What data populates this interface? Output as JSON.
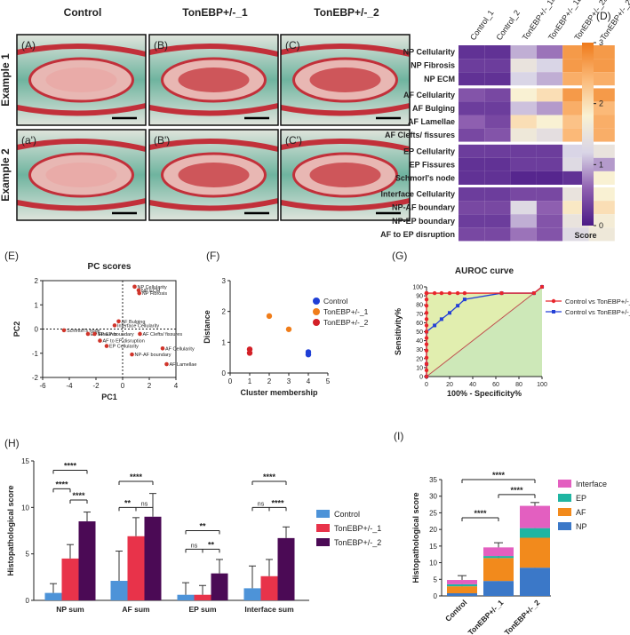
{
  "panel_letters": {
    "D": "(D)",
    "E": "(E)",
    "F": "(F)",
    "G": "(G)",
    "H": "(H)",
    "I": "(I)"
  },
  "histology": {
    "col_headers": [
      "Control",
      "TonEBP+/-_1",
      "TonEBP+/-_2"
    ],
    "row_headers": [
      "Example 1",
      "Example 2"
    ],
    "tile_labels": [
      [
        "(A)",
        "(B)",
        "(C)"
      ],
      [
        "(a')",
        "(B')",
        "(C')"
      ]
    ],
    "colors": {
      "bone": "#dfe4dc",
      "stain_green": "#6fb49f",
      "stain_red": "#c2303a",
      "tissue": "#e8b7b3",
      "border": "#111111"
    }
  },
  "chart_data": [
    {
      "panel": "D",
      "type": "heatmap",
      "columns": [
        "Control_1",
        "Control_2",
        "TonEBP+/-_1a",
        "TonEBP+/-_1b",
        "TonEBP+/-_2a",
        "TonEBP+/-_2b"
      ],
      "rows": [
        "NP Cellularity",
        "NP Fibrosis",
        "NP ECM",
        "AF Cellularity",
        "AF Bulging",
        "AF Lamellae",
        "AF Clefts/ fissures",
        "EP Cellularity",
        "EP Fissures",
        "Schmorl's node",
        "Interface Cellularity",
        "NP-AF boundary",
        "NP-EP boundary",
        "AF to EP disruption"
      ],
      "groups": [
        3,
        4,
        3,
        4
      ],
      "values": [
        [
          0.2,
          0.2,
          1.0,
          0.7,
          2.7,
          2.7
        ],
        [
          0.3,
          0.3,
          1.5,
          1.2,
          2.7,
          2.7
        ],
        [
          0.2,
          0.2,
          1.2,
          1.0,
          2.5,
          2.5
        ],
        [
          0.5,
          0.4,
          1.8,
          2.0,
          2.7,
          2.7
        ],
        [
          0.3,
          0.3,
          1.1,
          0.9,
          2.5,
          2.4
        ],
        [
          0.6,
          0.4,
          2.0,
          1.8,
          2.3,
          2.5
        ],
        [
          0.4,
          0.5,
          1.6,
          1.4,
          2.4,
          2.5
        ],
        [
          0.3,
          0.3,
          0.3,
          0.3,
          1.2,
          1.5
        ],
        [
          0.2,
          0.2,
          0.3,
          0.3,
          1.3,
          0.9
        ],
        [
          0.2,
          0.2,
          0.1,
          0.1,
          0.2,
          1.8
        ],
        [
          0.3,
          0.3,
          0.4,
          0.4,
          1.5,
          1.8
        ],
        [
          0.4,
          0.4,
          1.3,
          0.6,
          1.9,
          2.0
        ],
        [
          0.3,
          0.3,
          1.0,
          0.5,
          1.5,
          1.7
        ],
        [
          0.4,
          0.4,
          0.7,
          0.5,
          1.3,
          1.6
        ]
      ],
      "colorbar": {
        "min": 0,
        "max": 3,
        "ticks": [
          "0",
          "1",
          "2",
          "3"
        ],
        "label": "Score",
        "colors": [
          "#4b1b87",
          "#8e5fb0",
          "#d9d5e6",
          "#f9f1d3",
          "#fbb978",
          "#ef7a1a"
        ]
      }
    },
    {
      "panel": "E",
      "type": "scatter",
      "title": "PC scores",
      "xlabel": "PC1",
      "ylabel": "PC2",
      "xlim": [
        -6,
        4
      ],
      "ylim": [
        -2,
        2
      ],
      "xticks": [
        "-6",
        "-4",
        "-2",
        "0",
        "2",
        "4"
      ],
      "yticks": [
        "-2",
        "-1",
        "0",
        "1",
        "2"
      ],
      "point_color": "#d0352b",
      "points": [
        {
          "x": 0.9,
          "y": 1.75,
          "label": "NP Cellularity"
        },
        {
          "x": 1.2,
          "y": 1.6,
          "label": "NP ECM"
        },
        {
          "x": 1.25,
          "y": 1.48,
          "label": "NP Fibrosis"
        },
        {
          "x": -0.3,
          "y": 0.32,
          "label": "AF Bulging"
        },
        {
          "x": -0.6,
          "y": 0.15,
          "label": "Interface Cellularity"
        },
        {
          "x": -4.4,
          "y": -0.05,
          "label": "Schmorl's node"
        },
        {
          "x": -2.6,
          "y": -0.2,
          "label": "EP Fissures"
        },
        {
          "x": -2.1,
          "y": -0.2,
          "label": "NP-EP boundary"
        },
        {
          "x": 1.3,
          "y": -0.2,
          "label": "AF Clefts/ fissures"
        },
        {
          "x": -1.7,
          "y": -0.48,
          "label": "AF to EP disruption"
        },
        {
          "x": -1.2,
          "y": -0.7,
          "label": "EP Cellularity"
        },
        {
          "x": 3.0,
          "y": -0.8,
          "label": "AF Cellularity"
        },
        {
          "x": 0.7,
          "y": -1.05,
          "label": "NP-AF boundary"
        },
        {
          "x": 3.3,
          "y": -1.45,
          "label": "AF Lamellae"
        }
      ]
    },
    {
      "panel": "F",
      "type": "scatter",
      "xlabel": "Cluster membership",
      "ylabel": "Distance",
      "xlim": [
        0,
        5
      ],
      "ylim": [
        0,
        3
      ],
      "xticks": [
        "0",
        "1",
        "2",
        "3",
        "4",
        "5"
      ],
      "yticks": [
        "0",
        "1",
        "2",
        "3"
      ],
      "series": [
        {
          "name": "Control",
          "color": "#1f3fd6",
          "points": [
            [
              4,
              0.68
            ],
            [
              4,
              0.6
            ]
          ]
        },
        {
          "name": "TonEBP+/-_1",
          "color": "#f07d1a",
          "points": [
            [
              2,
              1.85
            ],
            [
              3,
              1.42
            ]
          ]
        },
        {
          "name": "TonEBP+/-_2",
          "color": "#d32027",
          "points": [
            [
              1,
              0.77
            ],
            [
              1,
              0.65
            ]
          ]
        }
      ]
    },
    {
      "panel": "G",
      "type": "line",
      "title": "AUROC curve",
      "xlabel": "100% - Specificity%",
      "ylabel": "Sensitivity%",
      "xlim": [
        0,
        100
      ],
      "ylim": [
        0,
        100
      ],
      "xticks": [
        "0",
        "20",
        "40",
        "60",
        "80",
        "100"
      ],
      "yticks": [
        "0",
        "10",
        "20",
        "30",
        "40",
        "50",
        "60",
        "70",
        "80",
        "90",
        "100"
      ],
      "series": [
        {
          "name": "Control vs TonEBP+/-_2",
          "color": "#e8262c",
          "x": [
            0,
            0,
            0,
            0,
            0,
            0,
            0,
            0,
            0,
            0,
            0,
            0,
            0,
            0,
            0,
            0,
            0,
            0,
            7,
            13,
            20,
            27,
            33,
            65,
            93,
            100
          ],
          "y": [
            0,
            7,
            14,
            21,
            29,
            36,
            43,
            50,
            57,
            64,
            71,
            79,
            86,
            93,
            93,
            93,
            93,
            93,
            93,
            93,
            93,
            93,
            93,
            93,
            93,
            100
          ]
        },
        {
          "name": "Control vs TonEBP+/-_1",
          "color": "#2440d6",
          "x": [
            0,
            0,
            0,
            7,
            13,
            20,
            27,
            33,
            65,
            93,
            100
          ],
          "y": [
            0,
            14,
            50,
            57,
            64,
            71,
            79,
            86,
            93,
            93,
            100
          ]
        }
      ]
    },
    {
      "panel": "H",
      "type": "bar",
      "ylabel": "Histopathological score",
      "ylim": [
        0,
        15
      ],
      "yticks": [
        "0",
        "5",
        "10",
        "15"
      ],
      "categories": [
        "NP sum",
        "AF sum",
        "EP sum",
        "Interface sum"
      ],
      "series": [
        {
          "name": "Control",
          "color": "#4d93d8",
          "values": [
            0.8,
            2.1,
            0.6,
            1.3
          ],
          "errors": [
            1.0,
            3.2,
            1.3,
            2.4
          ]
        },
        {
          "name": "TonEBP+/-_1",
          "color": "#e8334a",
          "values": [
            4.5,
            6.9,
            0.6,
            2.6
          ],
          "errors": [
            1.5,
            2.0,
            1.0,
            1.8
          ]
        },
        {
          "name": "TonEBP+/-_2",
          "color": "#4b0a55",
          "values": [
            8.5,
            9.0,
            2.9,
            6.7
          ],
          "errors": [
            1.0,
            2.5,
            1.5,
            1.2
          ]
        }
      ],
      "significance": [
        {
          "cat": 0,
          "from": 0,
          "to": 1,
          "label": "****",
          "y": 12.0
        },
        {
          "cat": 0,
          "from": 1,
          "to": 2,
          "label": "****",
          "y": 10.8
        },
        {
          "cat": 0,
          "from": 0,
          "to": 2,
          "label": "****",
          "y": 14.0
        },
        {
          "cat": 1,
          "from": 0,
          "to": 1,
          "label": "**",
          "y": 10.0
        },
        {
          "cat": 1,
          "from": 1,
          "to": 2,
          "label": "ns",
          "y": 10.0
        },
        {
          "cat": 1,
          "from": 0,
          "to": 2,
          "label": "****",
          "y": 12.8
        },
        {
          "cat": 2,
          "from": 0,
          "to": 1,
          "label": "ns",
          "y": 5.5
        },
        {
          "cat": 2,
          "from": 1,
          "to": 2,
          "label": "**",
          "y": 5.5
        },
        {
          "cat": 2,
          "from": 0,
          "to": 2,
          "label": "**",
          "y": 7.5
        },
        {
          "cat": 3,
          "from": 0,
          "to": 1,
          "label": "ns",
          "y": 10.0
        },
        {
          "cat": 3,
          "from": 1,
          "to": 2,
          "label": "****",
          "y": 10.0
        },
        {
          "cat": 3,
          "from": 0,
          "to": 2,
          "label": "****",
          "y": 12.8
        }
      ]
    },
    {
      "panel": "I",
      "type": "bar",
      "stacked": true,
      "ylabel": "Histopathological score",
      "ylim": [
        0,
        35
      ],
      "yticks": [
        "0",
        "5",
        "10",
        "15",
        "20",
        "25",
        "30",
        "35"
      ],
      "categories": [
        "Control",
        "TonEBP+/-_1",
        "TonEBP+/-_2"
      ],
      "series": [
        {
          "name": "NP",
          "color": "#3b78c8",
          "values": [
            0.8,
            4.5,
            8.5
          ],
          "errors": [
            1.0,
            1.5,
            1.0
          ]
        },
        {
          "name": "AF",
          "color": "#f28a1c",
          "values": [
            2.1,
            6.9,
            9.0
          ],
          "errors": [
            1.2,
            1.2,
            1.0
          ]
        },
        {
          "name": "EP",
          "color": "#1fb5a2",
          "values": [
            0.6,
            0.6,
            2.9
          ],
          "errors": [
            0.5,
            0.5,
            1.2
          ]
        },
        {
          "name": "Interface",
          "color": "#e35fc0",
          "values": [
            1.3,
            2.6,
            6.7
          ],
          "errors": [
            1.3,
            1.4,
            1.0
          ]
        }
      ],
      "significance": [
        {
          "from": 0,
          "to": 1,
          "label": "****",
          "y": 23.5
        },
        {
          "from": 1,
          "to": 2,
          "label": "****",
          "y": 30.5
        },
        {
          "from": 0,
          "to": 2,
          "label": "****",
          "y": 35.0
        }
      ]
    }
  ]
}
